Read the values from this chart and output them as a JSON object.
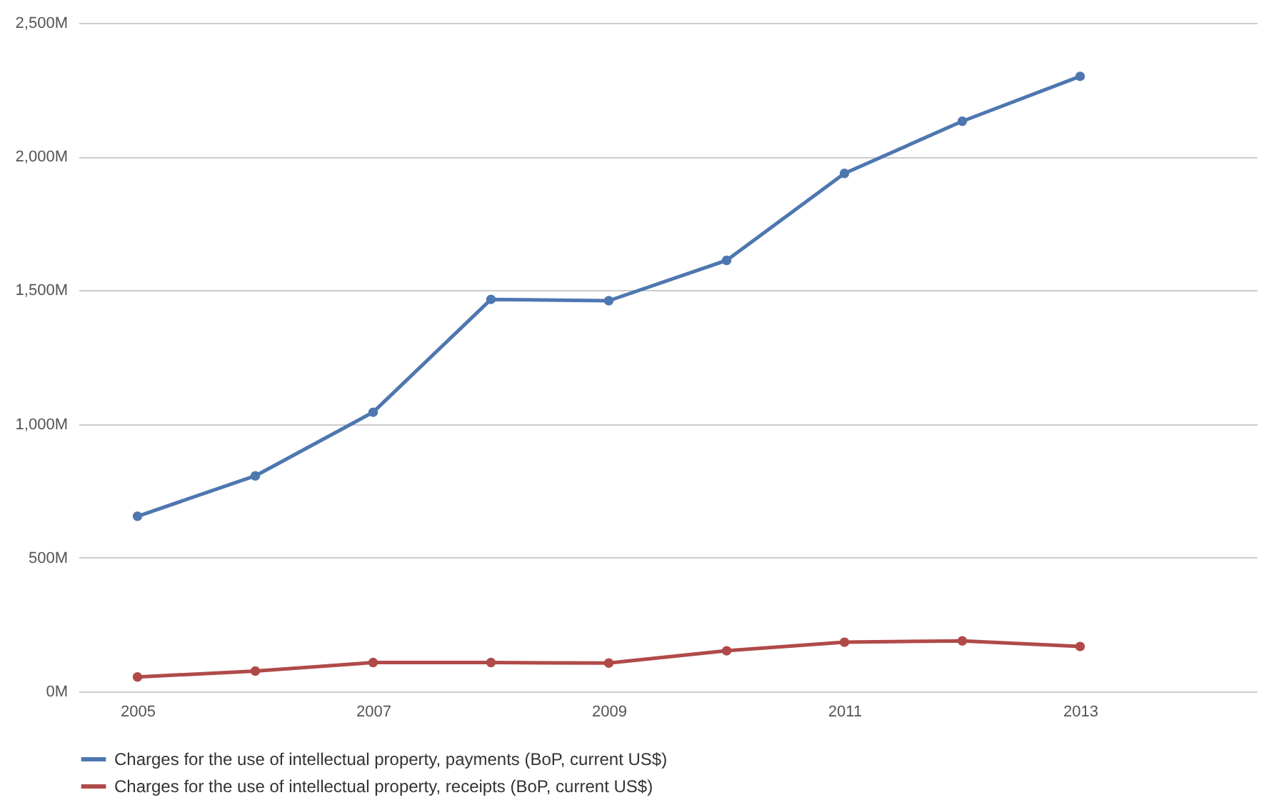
{
  "chart_data": {
    "type": "line",
    "x": [
      2005,
      2006,
      2007,
      2008,
      2009,
      2010,
      2011,
      2012,
      2013
    ],
    "series": [
      {
        "name": "Charges for the use of intellectual property, payments (BoP, current US$)",
        "color": "#4e77b0",
        "values": [
          655,
          806,
          1044,
          1466,
          1461,
          1612,
          1937,
          2132,
          2300
        ]
      },
      {
        "name": "Charges for the use of intellectual property, receipts (BoP, current US$)",
        "color": "#b04a48",
        "values": [
          54,
          76,
          108,
          108,
          106,
          152,
          184,
          189,
          168
        ]
      }
    ],
    "xlim": [
      2004.5,
      2014.5
    ],
    "xticks": [
      2005,
      2007,
      2009,
      2011,
      2013
    ],
    "ylim": [
      0,
      2500
    ],
    "yticks": [
      {
        "value": 0,
        "label": "0M"
      },
      {
        "value": 500,
        "label": "500M"
      },
      {
        "value": 1000,
        "label": "1,000M"
      },
      {
        "value": 1500,
        "label": "1,500M"
      },
      {
        "value": 2000,
        "label": "2,000M"
      },
      {
        "value": 2500,
        "label": "2,500M"
      }
    ],
    "grid": "y",
    "legend": "bottom",
    "marker": "circle",
    "line_style": "solid"
  }
}
